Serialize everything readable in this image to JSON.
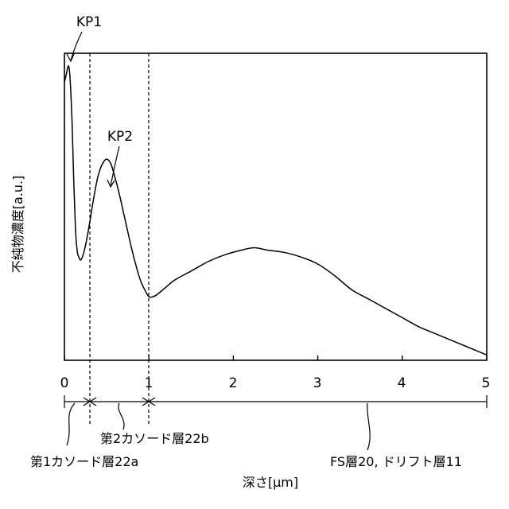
{
  "chart_data": {
    "type": "line",
    "title": "",
    "xlabel": "深さ[μm]",
    "ylabel": "不純物濃度[a.u.]",
    "xlim": [
      0,
      5
    ],
    "x_ticks": [
      "0",
      "1",
      "2",
      "3",
      "4",
      "5"
    ],
    "y_ticks": "none",
    "grid": false,
    "legend": "none",
    "series": [
      {
        "x": [
          0.0,
          0.02,
          0.05,
          0.07,
          0.09,
          0.11,
          0.13,
          0.15,
          0.17,
          0.2,
          0.25,
          0.3,
          0.35,
          0.4,
          0.45,
          0.5,
          0.55,
          0.6,
          0.65,
          0.7,
          0.75,
          0.8,
          0.85,
          0.9,
          0.95,
          1.0,
          1.05,
          1.1,
          1.2,
          1.3,
          1.5,
          1.7,
          1.9,
          2.1,
          2.25,
          2.4,
          2.6,
          2.8,
          3.0,
          3.2,
          3.4,
          3.6,
          3.8,
          4.0,
          4.2,
          4.4,
          4.6,
          4.8,
          5.0
        ],
        "y": [
          0.92,
          0.95,
          0.99,
          0.92,
          0.75,
          0.5,
          0.3,
          0.2,
          0.17,
          0.16,
          0.22,
          0.32,
          0.43,
          0.52,
          0.57,
          0.59,
          0.57,
          0.51,
          0.44,
          0.36,
          0.28,
          0.2,
          0.13,
          0.07,
          0.03,
          0.0,
          0.0,
          0.01,
          0.04,
          0.07,
          0.11,
          0.15,
          0.18,
          0.2,
          0.21,
          0.2,
          0.19,
          0.17,
          0.14,
          0.09,
          0.03,
          -0.01,
          -0.05,
          -0.09,
          -0.13,
          -0.16,
          -0.19,
          -0.22,
          -0.25
        ]
      }
    ],
    "guides": [
      {
        "x": 0.3,
        "style": "dashed"
      },
      {
        "x": 1.0,
        "style": "dashed"
      }
    ],
    "callouts": [
      {
        "id": "kp1",
        "label": "KP1",
        "x": 0.05
      },
      {
        "id": "kp2",
        "label": "KP2",
        "x": 0.53
      }
    ],
    "layers": [
      {
        "id": "cathode1",
        "label": "第1カソード層22a",
        "range": [
          0,
          0.3
        ]
      },
      {
        "id": "cathode2",
        "label": "第2カソード層22b",
        "range": [
          0.3,
          1.0
        ]
      },
      {
        "id": "fs-drift",
        "label": "FS層20, ドリフト層11",
        "range": [
          1.0,
          5.0
        ]
      }
    ]
  }
}
